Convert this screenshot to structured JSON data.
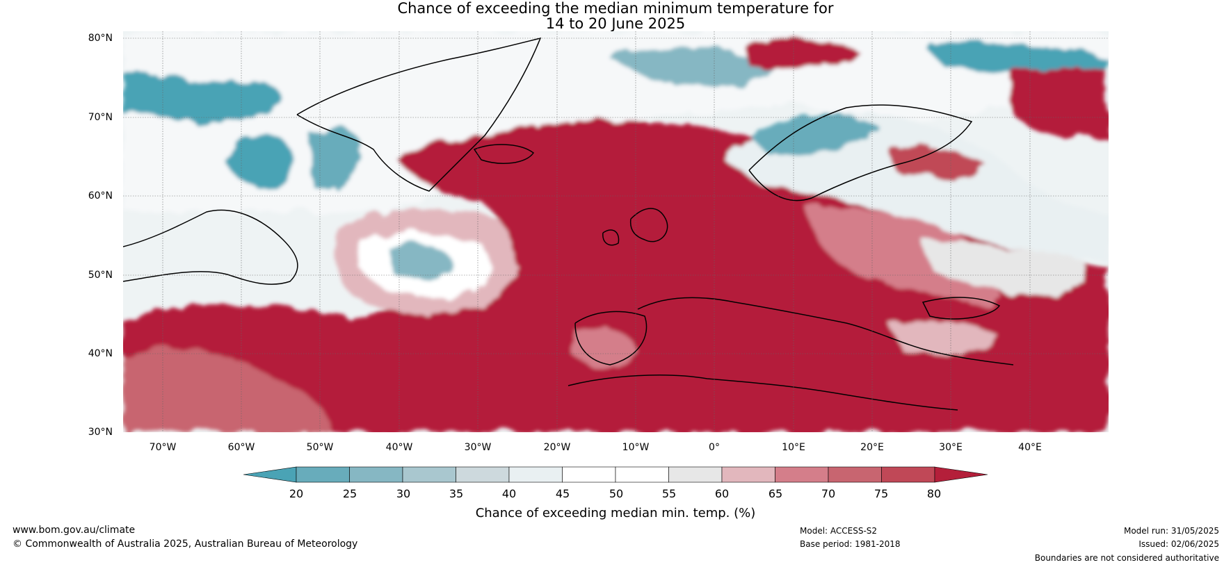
{
  "title": {
    "line1": "Chance of exceeding the median minimum temperature for",
    "line2": "14 to 20 June 2025"
  },
  "map": {
    "lat_labels": [
      "80°N",
      "70°N",
      "60°N",
      "50°N",
      "40°N",
      "30°N"
    ],
    "lon_labels": [
      "70°W",
      "60°W",
      "50°W",
      "40°W",
      "30°W",
      "20°W",
      "10°W",
      "0°",
      "10°E",
      "20°E",
      "30°E",
      "40°E"
    ]
  },
  "colorbar": {
    "ticks": [
      "20",
      "25",
      "30",
      "35",
      "40",
      "45",
      "50",
      "55",
      "60",
      "65",
      "70",
      "75",
      "80"
    ],
    "colors": [
      "#4aa3b5",
      "#68acbb",
      "#86b7c3",
      "#a9c7cf",
      "#cdd9dd",
      "#e9f0f2",
      "#ffffff",
      "#ffffff",
      "#e7e7e7",
      "#e2b7bd",
      "#d47e8a",
      "#c86570",
      "#c04857",
      "#b41f3a"
    ],
    "label": "Chance of exceeding median min. temp. (%)"
  },
  "footer": {
    "website": "www.bom.gov.au/climate",
    "copyright": "© Commonwealth of Australia 2025, Australian Bureau of Meteorology",
    "model": "Model: ACCESS-S2",
    "base_period": "Base period: 1981-2018",
    "model_run": "Model run: 31/05/2025",
    "issued": "Issued: 02/06/2025",
    "disclaimer": "Boundaries are not considered authoritative"
  }
}
